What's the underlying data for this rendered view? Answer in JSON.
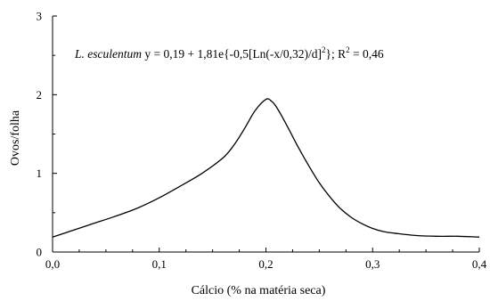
{
  "chart_data": {
    "type": "line",
    "xlabel": "Cálcio (% na matéria seca)",
    "ylabel": "Ovos/folha",
    "xlim": [
      0,
      0.4
    ],
    "ylim": [
      0,
      3
    ],
    "x_ticks": [
      "0,0",
      "0,1",
      "0,2",
      "0,3",
      "0,4"
    ],
    "y_ticks": [
      "0",
      "1",
      "2",
      "3"
    ],
    "x_tick_values": [
      0,
      0.1,
      0.2,
      0.3,
      0.4
    ],
    "y_tick_values": [
      0,
      1,
      2,
      3
    ],
    "grid": false,
    "annotation": {
      "species": "L. esculentum",
      "eq_start": " y = 0,19 + 1,81e{-0,5[Ln(-x/0,32)/d]",
      "exp": "2",
      "eq_mid": "}; R",
      "eq_end": " = 0,46"
    },
    "series": [
      {
        "x": [
          0.0,
          0.02,
          0.04,
          0.06,
          0.08,
          0.1,
          0.12,
          0.14,
          0.16,
          0.17,
          0.18,
          0.19,
          0.2,
          0.205,
          0.21,
          0.22,
          0.23,
          0.24,
          0.25,
          0.26,
          0.27,
          0.28,
          0.29,
          0.3,
          0.31,
          0.32,
          0.34,
          0.36,
          0.38,
          0.4
        ],
        "y": [
          0.19,
          0.28,
          0.37,
          0.46,
          0.56,
          0.69,
          0.84,
          1.0,
          1.2,
          1.36,
          1.57,
          1.8,
          1.94,
          1.92,
          1.84,
          1.6,
          1.34,
          1.1,
          0.88,
          0.7,
          0.55,
          0.44,
          0.36,
          0.3,
          0.26,
          0.24,
          0.21,
          0.2,
          0.2,
          0.19
        ]
      }
    ]
  }
}
